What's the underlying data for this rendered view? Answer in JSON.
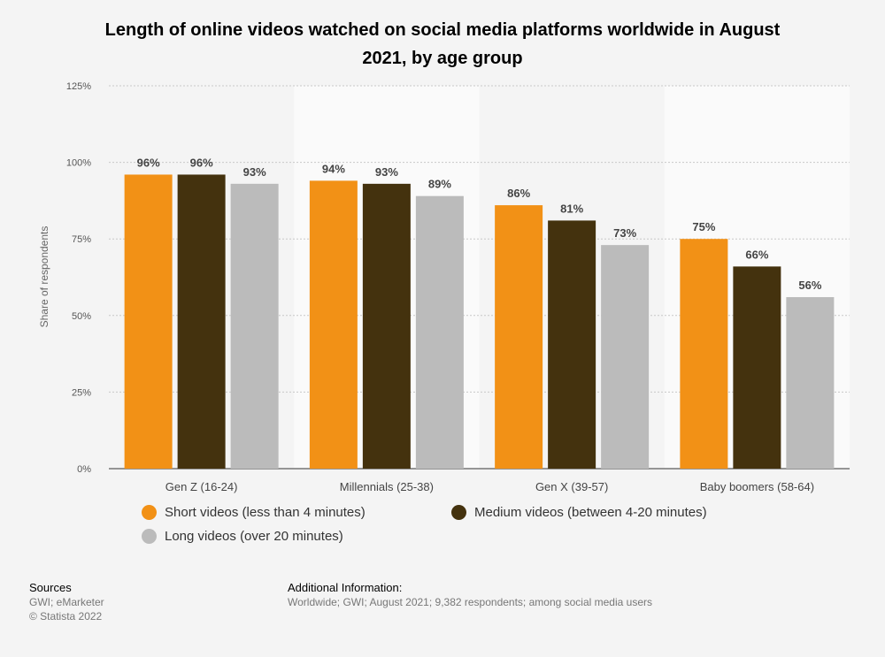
{
  "title": "Length of online videos watched on social media platforms worldwide in August 2021, by age group",
  "chart_data": {
    "type": "bar",
    "title": "Length of online videos watched on social media platforms worldwide in August 2021, by age group",
    "xlabel": "",
    "ylabel": "Share of respondents",
    "ylim": [
      0,
      125
    ],
    "yticks": [
      "0%",
      "25%",
      "50%",
      "75%",
      "100%",
      "125%"
    ],
    "grid": true,
    "legend_position": "bottom",
    "categories": [
      "Gen Z (16-24)",
      "Millennials (25-38)",
      "Gen X (39-57)",
      "Baby boomers (58-64)"
    ],
    "series": [
      {
        "name": "Short videos (less than 4 minutes)",
        "color": "#f29116",
        "values": [
          96,
          94,
          86,
          75
        ]
      },
      {
        "name": "Medium videos (between 4-20 minutes)",
        "color": "#44320e",
        "values": [
          96,
          93,
          81,
          66
        ]
      },
      {
        "name": "Long videos (over 20 minutes)",
        "color": "#bbbbbb",
        "values": [
          93,
          89,
          73,
          56
        ]
      }
    ]
  },
  "legend": {
    "items": [
      {
        "label": "Short videos (less than 4 minutes)",
        "color": "#f29116"
      },
      {
        "label": "Medium videos (between 4-20 minutes)",
        "color": "#44320e"
      },
      {
        "label": "Long videos (over 20 minutes)",
        "color": "#bbbbbb"
      }
    ]
  },
  "sources": {
    "heading": "Sources",
    "line1": "GWI; eMarketer",
    "line2": "© Statista 2022"
  },
  "additional": {
    "heading": "Additional Information:",
    "text": "Worldwide; GWI; August 2021; 9,382 respondents; among social media users"
  }
}
